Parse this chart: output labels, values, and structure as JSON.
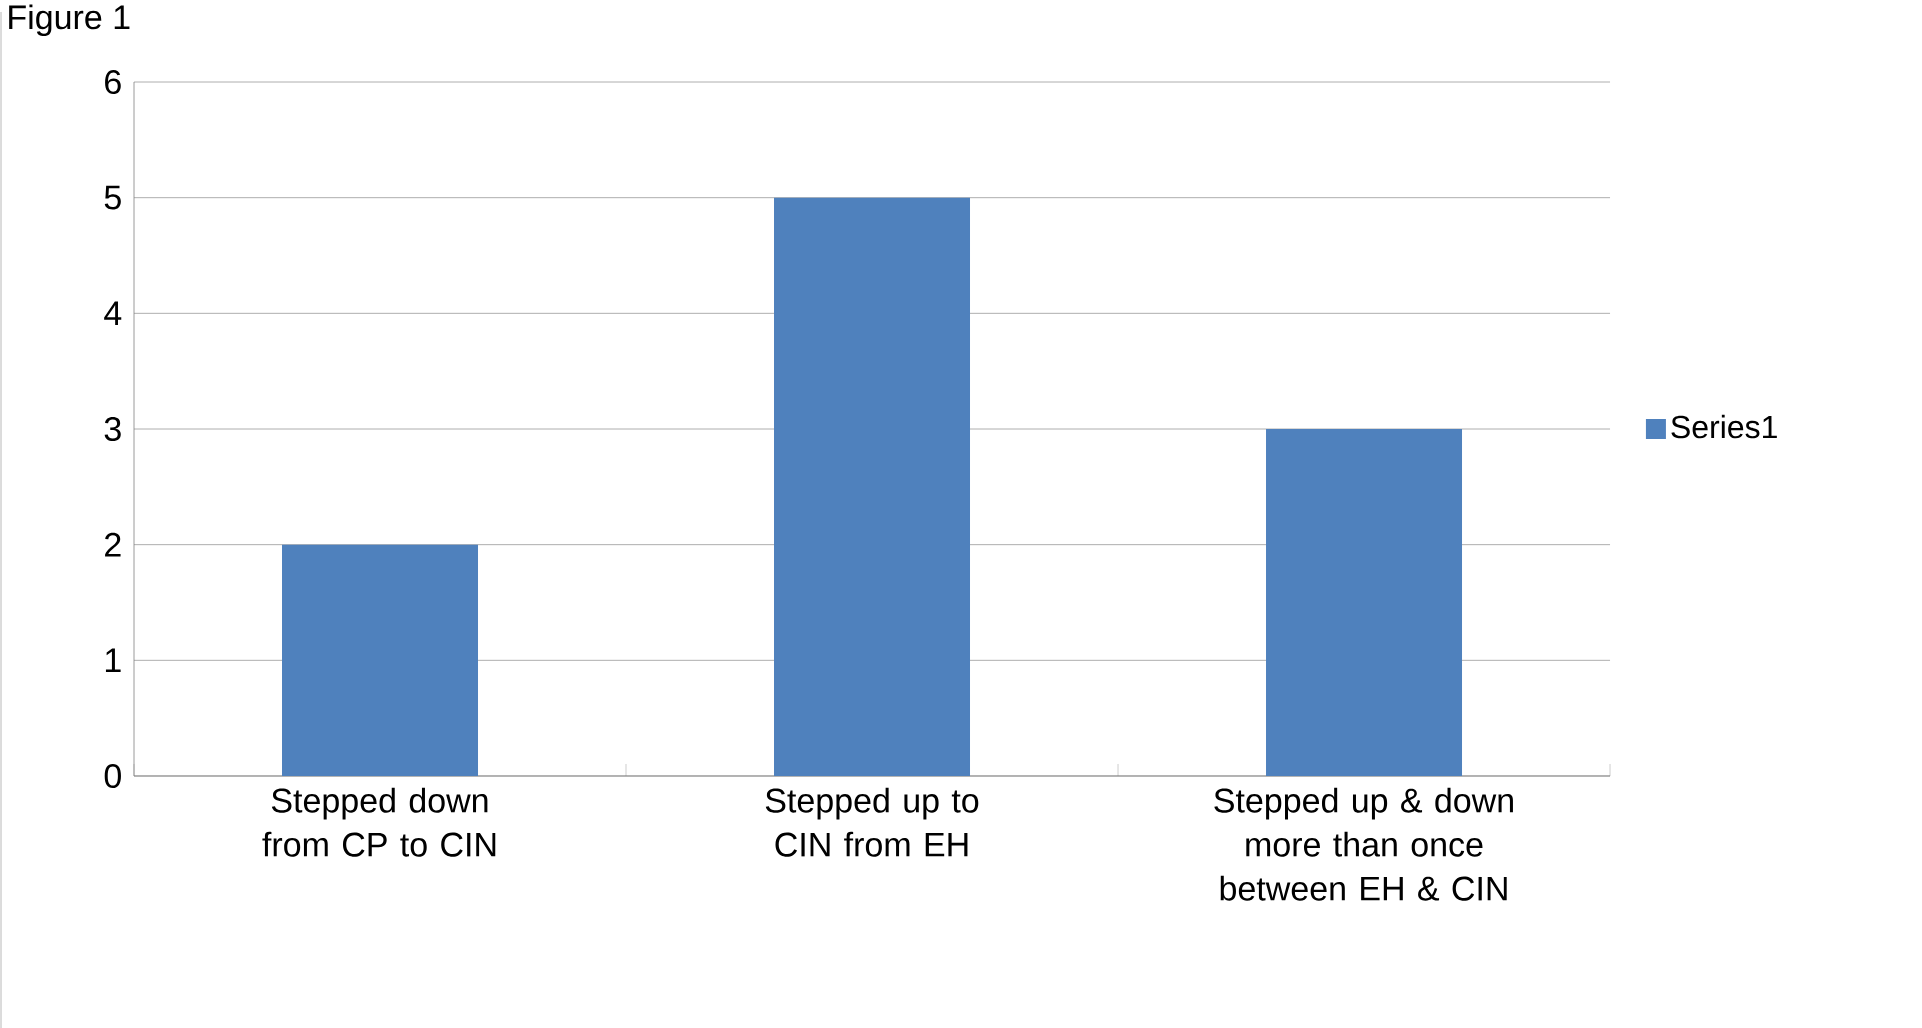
{
  "chart_data": {
    "type": "bar",
    "title": "Figure 1",
    "categories": [
      "Stepped down from CP to CIN",
      "Stepped up to CIN from EH",
      "Stepped up & down more than once between EH & CIN"
    ],
    "series": [
      {
        "name": "Series1",
        "color": "#4f81bd",
        "values": [
          2,
          5,
          3
        ]
      }
    ],
    "ylim": [
      0,
      6
    ],
    "yticks": [
      0,
      1,
      2,
      3,
      4,
      5,
      6
    ],
    "grid": "y",
    "legend": "right"
  }
}
